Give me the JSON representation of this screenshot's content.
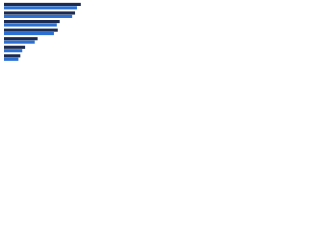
{
  "chart_data": {
    "type": "bar",
    "orientation": "horizontal",
    "categories": [
      null,
      null,
      null,
      null,
      null,
      null,
      null
    ],
    "series": [
      {
        "color": "#1b2a4e",
        "values": [
          80,
          74,
          58,
          56,
          35,
          22,
          17
        ]
      },
      {
        "color": "#2a6fd1",
        "values": [
          76,
          71,
          55,
          52,
          32,
          19,
          15
        ]
      }
    ],
    "xlim": [
      0,
      100
    ]
  }
}
